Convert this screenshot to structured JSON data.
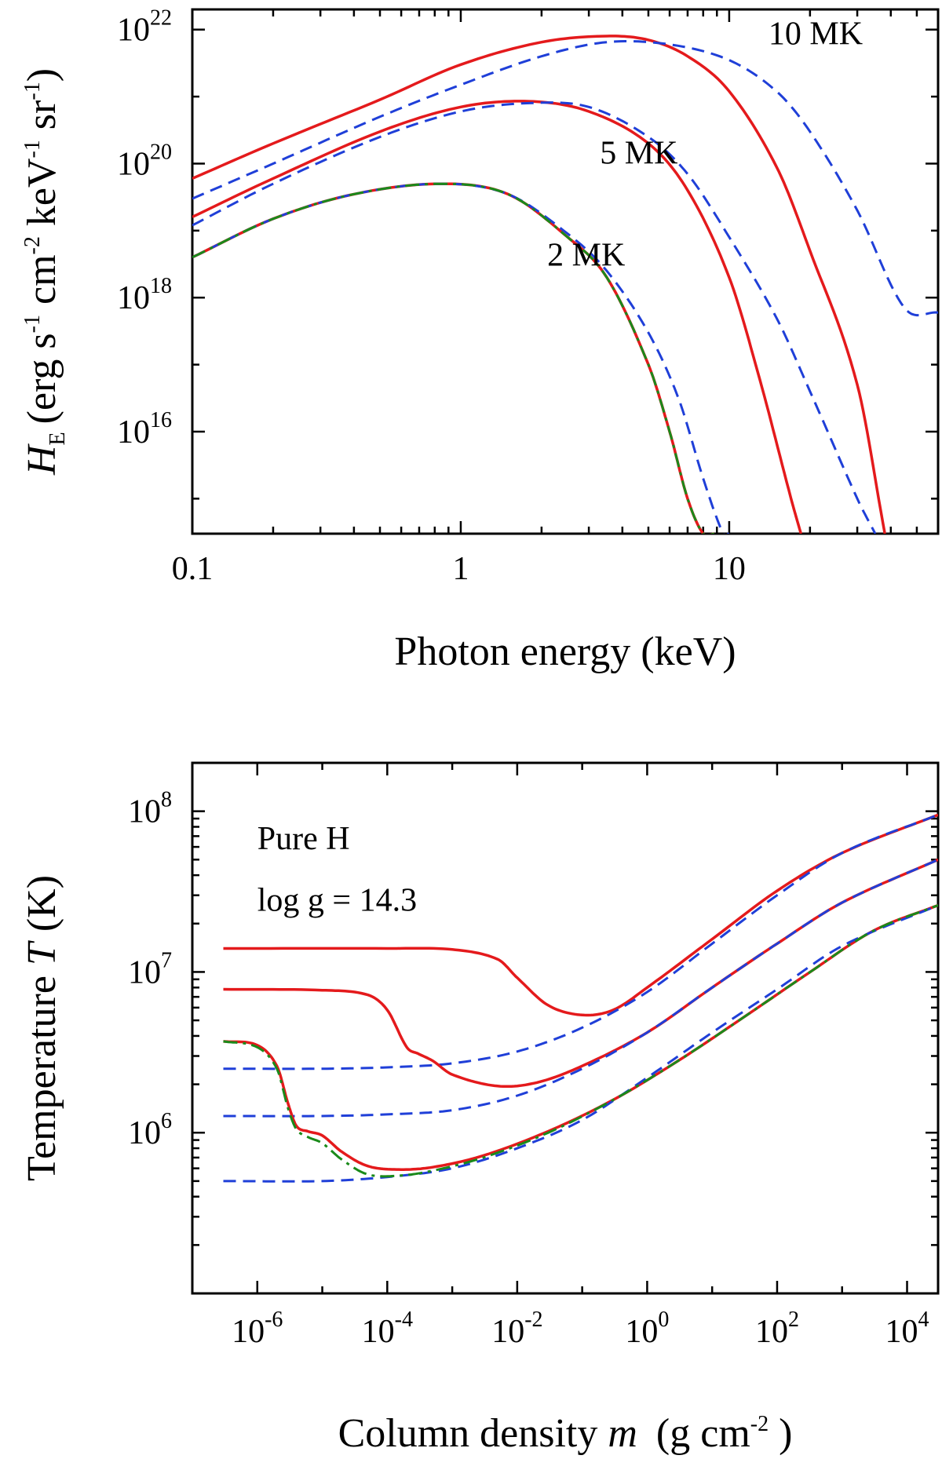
{
  "chart_data": [
    {
      "type": "line",
      "xscale": "log",
      "yscale": "log",
      "xlim": [
        0.1,
        60
      ],
      "ylim": [
        300000000000000.0,
        2e+22
      ],
      "xlabel": "Photon energy  (keV)",
      "ylabel": "H_E (erg s^-1 cm^-2 keV^-1 sr^-1)",
      "ylabel_parts": {
        "symbol": "H",
        "sub": "E",
        "unit": "(erg s^-1 cm^-2 keV^-1 sr^-1)"
      },
      "xticks": [
        {
          "value": 0.1,
          "label": "0.1"
        },
        {
          "value": 1,
          "label": "1"
        },
        {
          "value": 10,
          "label": "10"
        }
      ],
      "yticks": [
        {
          "value": 1e+16,
          "base": "10",
          "exp": "16"
        },
        {
          "value": 1e+18,
          "base": "10",
          "exp": "18"
        },
        {
          "value": 1e+20,
          "base": "10",
          "exp": "20"
        },
        {
          "value": 1e+22,
          "base": "10",
          "exp": "22"
        }
      ],
      "annotations": [
        {
          "text": "10 MK",
          "x": 14,
          "y": 6e+21
        },
        {
          "text": "5 MK",
          "x": 3.3,
          "y": 1e+20
        },
        {
          "text": "2 MK",
          "x": 2.1,
          "y": 3e+18
        }
      ],
      "series": [
        {
          "group": "10 MK",
          "style": "solid",
          "color": "#e41a1c",
          "x": [
            0.1,
            0.2,
            0.5,
            1,
            2,
            3.5,
            5,
            7,
            10,
            15,
            20,
            30,
            38
          ],
          "y": [
            6e+19,
            2e+20,
            9e+20,
            3e+21,
            6.5e+21,
            8e+21,
            7e+21,
            4e+21,
            1.2e+21,
            9e+19,
            5e+18,
            5e+16,
            300000000000000.0
          ]
        },
        {
          "group": "10 MK",
          "style": "dashed",
          "color": "#1f3fd8",
          "x": [
            0.1,
            0.2,
            0.5,
            1,
            2,
            3.5,
            6,
            10,
            15,
            20,
            30,
            45,
            60
          ],
          "y": [
            3e+19,
            1e+20,
            5e+20,
            1.5e+21,
            4e+21,
            6.5e+21,
            6e+21,
            3.5e+21,
            1.2e+21,
            3e+20,
            2e+19,
            7e+17,
            6e+17
          ]
        },
        {
          "group": "5 MK",
          "style": "solid",
          "color": "#e41a1c",
          "x": [
            0.1,
            0.2,
            0.5,
            1,
            1.8,
            3,
            5,
            7,
            10,
            13,
            17,
            18.5
          ],
          "y": [
            1.6e+19,
            6e+19,
            3e+20,
            7e+20,
            8.5e+20,
            6e+20,
            2e+20,
            4e+19,
            2e+18,
            6e+16,
            1000000000000000.0,
            300000000000000.0
          ]
        },
        {
          "group": "5 MK",
          "style": "dashed",
          "color": "#1f3fd8",
          "x": [
            0.1,
            0.2,
            0.5,
            1,
            1.8,
            3,
            5,
            7,
            10,
            15,
            20,
            30,
            35
          ],
          "y": [
            1.2e+19,
            5e+19,
            2.5e+20,
            6e+20,
            8e+20,
            7e+20,
            2.5e+20,
            7e+19,
            8e+18,
            5e+17,
            4e+16,
            1000000000000000.0,
            300000000000000.0
          ]
        },
        {
          "group": "2 MK",
          "style": "solid",
          "color": "#e41a1c",
          "x": [
            0.1,
            0.2,
            0.4,
            0.85,
            1.5,
            2.5,
            3.5,
            5,
            6,
            7,
            8,
            8.8
          ],
          "y": [
            4e+18,
            1.5e+19,
            3.5e+19,
            5e+19,
            3.5e+19,
            8e+18,
            2e+18,
            1e+17,
            1e+16,
            1000000000000000.0,
            300000000000000.0,
            300000000000000.0
          ]
        },
        {
          "group": "2 MK",
          "style": "dashed",
          "color": "#1f3fd8",
          "x": [
            0.1,
            0.2,
            0.4,
            0.85,
            1.5,
            2.5,
            3.5,
            5,
            6.5,
            8,
            9.5,
            10
          ],
          "y": [
            4e+18,
            1.5e+19,
            3.5e+19,
            5e+19,
            3.5e+19,
            9e+18,
            2.5e+18,
            3e+17,
            3e+16,
            2000000000000000.0,
            300000000000000.0,
            300000000000000.0
          ]
        },
        {
          "group": "2 MK",
          "style": "dashdot",
          "color": "#1a8a1a",
          "x": [
            0.1,
            0.2,
            0.4,
            0.85,
            1.5,
            2.5,
            3.5,
            5,
            6,
            7,
            8,
            8.8
          ],
          "y": [
            4e+18,
            1.5e+19,
            3.5e+19,
            5e+19,
            3.5e+19,
            8e+18,
            2e+18,
            1e+17,
            1e+16,
            1000000000000000.0,
            300000000000000.0,
            300000000000000.0
          ]
        }
      ]
    },
    {
      "type": "line",
      "xscale": "log",
      "yscale": "log",
      "xlim": [
        1e-07,
        30000.0
      ],
      "ylim": [
        100000.0,
        200000000.0
      ],
      "xlabel": "Column density m  (g cm^-2 )",
      "xlabel_parts": {
        "text": "Column density ",
        "symbol": "m",
        "unit": "(g cm^-2 )"
      },
      "ylabel": "Temperature T (K)",
      "ylabel_parts": {
        "text": "Temperature ",
        "symbol": "T",
        "unit": "(K)"
      },
      "xticks": [
        {
          "value": 1e-06,
          "base": "10",
          "exp": "-6"
        },
        {
          "value": 0.0001,
          "base": "10",
          "exp": "-4"
        },
        {
          "value": 0.01,
          "base": "10",
          "exp": "-2"
        },
        {
          "value": 1,
          "base": "10",
          "exp": "0"
        },
        {
          "value": 100.0,
          "base": "10",
          "exp": "2"
        },
        {
          "value": 10000.0,
          "base": "10",
          "exp": "4"
        }
      ],
      "yticks": [
        {
          "value": 1000000.0,
          "base": "10",
          "exp": "6"
        },
        {
          "value": 10000000.0,
          "base": "10",
          "exp": "7"
        },
        {
          "value": 100000000.0,
          "base": "10",
          "exp": "8"
        }
      ],
      "annotations": [
        {
          "text": "Pure H",
          "x": 1e-06,
          "y": 58000000.0
        },
        {
          "text": "log g = 14.3",
          "x": 1e-06,
          "y": 24000000.0
        }
      ],
      "series": [
        {
          "group": "10 MK",
          "style": "solid",
          "color": "#e41a1c",
          "x": [
            3e-07,
            0.0001,
            0.001,
            0.005,
            0.01,
            0.03,
            0.1,
            0.3,
            1,
            10,
            100,
            1000,
            30000.0
          ],
          "y": [
            14000000.0,
            14000000.0,
            13800000.0,
            12000000.0,
            9200000.0,
            6200000.0,
            5400000.0,
            5800000.0,
            8000000.0,
            16000000.0,
            32000000.0,
            55000000.0,
            95000000.0
          ]
        },
        {
          "group": "10 MK",
          "style": "dashed",
          "color": "#1f3fd8",
          "x": [
            3e-07,
            1e-05,
            0.0001,
            0.001,
            0.01,
            0.1,
            1,
            10,
            100,
            1000,
            30000.0
          ],
          "y": [
            2500000.0,
            2500000.0,
            2550000.0,
            2700000.0,
            3200000.0,
            4500000.0,
            7500000.0,
            15000000.0,
            30000000.0,
            55000000.0,
            95000000.0
          ]
        },
        {
          "group": "5 MK",
          "style": "solid",
          "color": "#e41a1c",
          "x": [
            3e-07,
            1e-05,
            5e-05,
            0.0001,
            0.0002,
            0.0003,
            0.0005,
            0.001,
            0.005,
            0.02,
            0.1,
            1,
            10,
            100,
            1000,
            30000.0
          ],
          "y": [
            7800000.0,
            7700000.0,
            7200000.0,
            5800000.0,
            3400000.0,
            3100000.0,
            2800000.0,
            2300000.0,
            1950000.0,
            2050000.0,
            2600000.0,
            4200000.0,
            8000000.0,
            15000000.0,
            27000000.0,
            50000000.0
          ]
        },
        {
          "group": "5 MK",
          "style": "dashed",
          "color": "#1f3fd8",
          "x": [
            3e-07,
            1e-05,
            0.0001,
            0.001,
            0.01,
            0.1,
            1,
            10,
            100,
            1000,
            30000.0
          ],
          "y": [
            1270000.0,
            1270000.0,
            1300000.0,
            1380000.0,
            1700000.0,
            2500000.0,
            4200000.0,
            8000000.0,
            15000000.0,
            27000000.0,
            50000000.0
          ]
        },
        {
          "group": "2 MK",
          "style": "solid",
          "color": "#e41a1c",
          "x": [
            3e-07,
            1e-06,
            2e-06,
            3e-06,
            4e-06,
            6e-06,
            1e-05,
            2e-05,
            5e-05,
            0.00015,
            0.0005,
            0.003,
            0.03,
            0.3,
            3,
            30,
            300,
            3000,
            30000.0
          ],
          "y": [
            3700000.0,
            3500000.0,
            2600000.0,
            1500000.0,
            1100000.0,
            1020000.0,
            960000.0,
            760000.0,
            620000.0,
            590000.0,
            610000.0,
            720000.0,
            1020000.0,
            1600000.0,
            2800000.0,
            5200000.0,
            9800000.0,
            18000000.0,
            26000000.0
          ]
        },
        {
          "group": "2 MK",
          "style": "dashed",
          "color": "#1f3fd8",
          "x": [
            3e-07,
            1e-05,
            0.0001,
            0.001,
            0.01,
            0.1,
            1,
            10,
            100,
            1000,
            30000.0
          ],
          "y": [
            500000.0,
            500000.0,
            530000.0,
            600000.0,
            800000.0,
            1200000.0,
            2200000.0,
            4200000.0,
            7800000.0,
            14500000.0,
            26000000.0
          ]
        },
        {
          "group": "2 MK",
          "style": "dashdot",
          "color": "#1a8a1a",
          "x": [
            3e-07,
            1e-06,
            2e-06,
            3e-06,
            4e-06,
            6e-06,
            1e-05,
            2e-05,
            5e-05,
            0.00015,
            0.0005,
            0.003,
            0.03,
            0.3,
            3,
            30,
            300,
            3000,
            30000.0
          ],
          "y": [
            3700000.0,
            3400000.0,
            2500000.0,
            1400000.0,
            1050000.0,
            940000.0,
            860000.0,
            680000.0,
            550000.0,
            540000.0,
            580000.0,
            700000.0,
            1000000.0,
            1600000.0,
            2800000.0,
            5200000.0,
            9800000.0,
            18000000.0,
            26000000.0
          ]
        }
      ]
    }
  ]
}
